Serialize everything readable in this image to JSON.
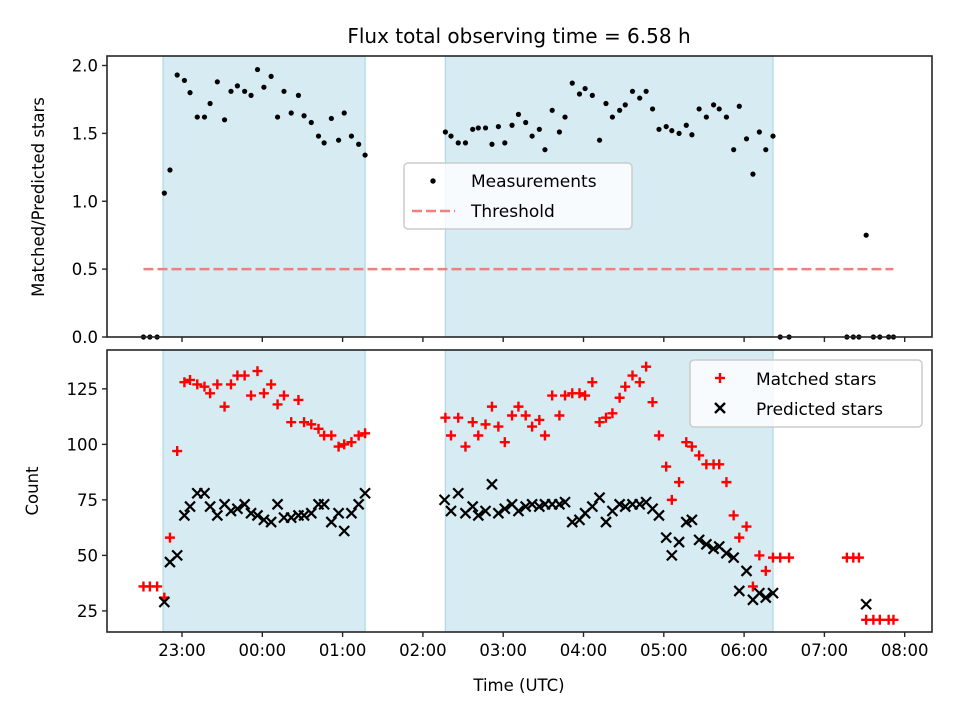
{
  "chart_data": [
    {
      "type": "scatter",
      "title": "Flux total observing time = 6.58 h",
      "xlabel": "",
      "ylabel": "Matched/Predicted stars",
      "x_units": "hours since 22:00 UTC",
      "xlim": [
        0.066,
        10.34
      ],
      "ylim": [
        0.0,
        2.07
      ],
      "yticks": [
        0.0,
        0.5,
        1.0,
        1.5,
        2.0
      ],
      "ytick_labels": [
        "0.0",
        "0.5",
        "1.0",
        "1.5",
        "2.0"
      ],
      "grid": false,
      "legend_position": "center",
      "shaded_spans": [
        [
          0.764,
          3.28
        ],
        [
          4.28,
          8.36
        ]
      ],
      "shade_color": "#add8e6",
      "series": [
        {
          "name": "Measurements",
          "marker": "dot",
          "color": "#000000",
          "x": [
            0.52,
            0.6,
            0.69,
            0.78,
            0.85,
            0.94,
            1.03,
            1.1,
            1.19,
            1.28,
            1.35,
            1.44,
            1.53,
            1.61,
            1.69,
            1.78,
            1.86,
            1.94,
            2.02,
            2.11,
            2.19,
            2.27,
            2.36,
            2.45,
            2.52,
            2.61,
            2.7,
            2.77,
            2.86,
            2.95,
            3.02,
            3.11,
            3.2,
            3.28,
            4.28,
            4.35,
            4.44,
            4.53,
            4.62,
            4.69,
            4.78,
            4.86,
            4.94,
            5.02,
            5.11,
            5.19,
            5.28,
            5.36,
            5.45,
            5.52,
            5.61,
            5.7,
            5.77,
            5.86,
            5.95,
            6.02,
            6.11,
            6.2,
            6.28,
            6.36,
            6.45,
            6.52,
            6.61,
            6.7,
            6.78,
            6.86,
            6.94,
            7.03,
            7.1,
            7.19,
            7.28,
            7.35,
            7.44,
            7.53,
            7.62,
            7.69,
            7.78,
            7.87,
            7.94,
            8.03,
            8.11,
            8.19,
            8.27,
            8.36,
            8.45,
            8.56,
            9.28,
            9.36,
            9.43,
            9.52,
            9.61,
            9.69,
            9.8,
            9.86
          ],
          "y": [
            0,
            0,
            0,
            1.06,
            1.23,
            1.93,
            1.89,
            1.8,
            1.62,
            1.62,
            1.72,
            1.88,
            1.6,
            1.81,
            1.85,
            1.81,
            1.78,
            1.97,
            1.84,
            1.92,
            1.62,
            1.81,
            1.65,
            1.78,
            1.63,
            1.58,
            1.48,
            1.43,
            1.61,
            1.45,
            1.65,
            1.48,
            1.42,
            1.34,
            1.51,
            1.48,
            1.43,
            1.43,
            1.53,
            1.54,
            1.54,
            1.42,
            1.55,
            1.43,
            1.56,
            1.64,
            1.58,
            1.48,
            1.53,
            1.38,
            1.67,
            1.51,
            1.62,
            1.87,
            1.79,
            1.83,
            1.78,
            1.45,
            1.72,
            1.62,
            1.67,
            1.71,
            1.81,
            1.76,
            1.81,
            1.68,
            1.53,
            1.55,
            1.52,
            1.5,
            1.56,
            1.49,
            1.68,
            1.62,
            1.71,
            1.68,
            1.62,
            1.38,
            1.7,
            1.46,
            1.2,
            1.51,
            1.38,
            1.48,
            0,
            0,
            0,
            0,
            0,
            0.75,
            0,
            0,
            0,
            0
          ]
        },
        {
          "name": "Threshold",
          "marker": "dashed-line",
          "color": "#f08080",
          "x": [
            0.52,
            9.86
          ],
          "y": [
            0.5,
            0.5
          ]
        }
      ]
    },
    {
      "type": "scatter",
      "title": "",
      "xlabel": "Time (UTC)",
      "ylabel": "Count",
      "x_units": "hours since 22:00 UTC",
      "xlim": [
        0.066,
        10.34
      ],
      "ylim": [
        15.5,
        142.5
      ],
      "xticks": [
        1,
        2,
        3,
        4,
        5,
        6,
        7,
        8,
        9,
        10
      ],
      "xtick_labels": [
        "23:00",
        "00:00",
        "01:00",
        "02:00",
        "03:00",
        "04:00",
        "05:00",
        "06:00",
        "07:00",
        "08:00"
      ],
      "yticks": [
        25,
        50,
        75,
        100,
        125
      ],
      "ytick_labels": [
        "25",
        "50",
        "75",
        "100",
        "125"
      ],
      "grid": false,
      "legend_position": "top-right",
      "shaded_spans": [
        [
          0.764,
          3.28
        ],
        [
          4.28,
          8.36
        ]
      ],
      "shade_color": "#add8e6",
      "series": [
        {
          "name": "Matched stars",
          "marker": "plus",
          "color": "#ff0000",
          "x": [
            0.52,
            0.6,
            0.69,
            0.78,
            0.85,
            0.94,
            1.03,
            1.1,
            1.19,
            1.28,
            1.35,
            1.44,
            1.53,
            1.61,
            1.69,
            1.78,
            1.86,
            1.94,
            2.02,
            2.11,
            2.19,
            2.27,
            2.36,
            2.45,
            2.52,
            2.61,
            2.7,
            2.77,
            2.86,
            2.95,
            3.02,
            3.11,
            3.2,
            3.28,
            4.28,
            4.35,
            4.44,
            4.53,
            4.62,
            4.69,
            4.78,
            4.86,
            4.94,
            5.02,
            5.11,
            5.19,
            5.28,
            5.36,
            5.45,
            5.52,
            5.61,
            5.7,
            5.77,
            5.86,
            5.95,
            6.02,
            6.11,
            6.2,
            6.28,
            6.36,
            6.45,
            6.52,
            6.61,
            6.7,
            6.78,
            6.86,
            6.94,
            7.03,
            7.1,
            7.19,
            7.28,
            7.35,
            7.44,
            7.53,
            7.62,
            7.69,
            7.78,
            7.87,
            7.94,
            8.03,
            8.11,
            8.19,
            8.27,
            8.36,
            8.45,
            8.56,
            9.28,
            9.36,
            9.43,
            9.52,
            9.61,
            9.69,
            9.8,
            9.86
          ],
          "y": [
            36,
            36,
            36,
            31,
            58,
            97,
            128,
            129,
            127,
            126,
            123,
            127,
            117,
            127,
            131,
            131,
            122,
            133,
            123,
            127,
            118,
            122,
            110,
            120,
            110,
            109,
            107,
            104,
            104,
            99,
            100,
            101,
            104,
            105,
            112,
            104,
            112,
            99,
            110,
            104,
            109,
            117,
            108,
            101,
            113,
            117,
            113,
            108,
            111,
            104,
            122,
            113,
            122,
            123,
            123,
            122,
            128,
            110,
            112,
            114,
            121,
            126,
            131,
            128,
            135,
            119,
            104,
            90,
            75,
            83,
            101,
            99,
            95,
            91,
            91,
            91,
            83,
            68,
            58,
            63,
            36,
            50,
            43,
            49,
            49,
            49,
            49,
            49,
            49,
            21,
            21,
            21,
            21,
            21
          ]
        },
        {
          "name": "Predicted stars",
          "marker": "x",
          "color": "#000000",
          "x": [
            0.78,
            0.85,
            0.94,
            1.03,
            1.1,
            1.19,
            1.28,
            1.35,
            1.44,
            1.53,
            1.61,
            1.69,
            1.78,
            1.86,
            1.94,
            2.02,
            2.11,
            2.19,
            2.27,
            2.36,
            2.45,
            2.52,
            2.61,
            2.7,
            2.77,
            2.86,
            2.95,
            3.02,
            3.11,
            3.2,
            3.28,
            4.27,
            4.35,
            4.44,
            4.53,
            4.62,
            4.69,
            4.78,
            4.86,
            4.94,
            5.02,
            5.11,
            5.19,
            5.28,
            5.36,
            5.45,
            5.52,
            5.61,
            5.7,
            5.77,
            5.86,
            5.95,
            6.02,
            6.11,
            6.2,
            6.28,
            6.36,
            6.45,
            6.52,
            6.61,
            6.7,
            6.78,
            6.86,
            6.94,
            7.03,
            7.1,
            7.19,
            7.28,
            7.35,
            7.44,
            7.53,
            7.62,
            7.69,
            7.78,
            7.87,
            7.94,
            8.03,
            8.11,
            8.19,
            8.27,
            8.36,
            9.52
          ],
          "y": [
            29,
            47,
            50,
            68,
            72,
            78,
            78,
            72,
            68,
            73,
            70,
            71,
            73,
            69,
            68,
            66,
            65,
            73,
            67,
            67,
            68,
            68,
            69,
            73,
            73,
            65,
            69,
            61,
            69,
            73,
            78,
            75,
            70,
            78,
            69,
            72,
            68,
            70,
            82,
            69,
            71,
            73,
            70,
            72,
            73,
            72,
            73,
            73,
            73,
            74,
            65,
            66,
            69,
            72,
            76,
            65,
            70,
            73,
            72,
            73,
            73,
            74,
            71,
            68,
            58,
            50,
            56,
            65,
            66,
            57,
            55,
            53,
            54,
            51,
            49,
            34,
            43,
            30,
            33,
            31,
            33,
            28
          ]
        }
      ]
    }
  ]
}
